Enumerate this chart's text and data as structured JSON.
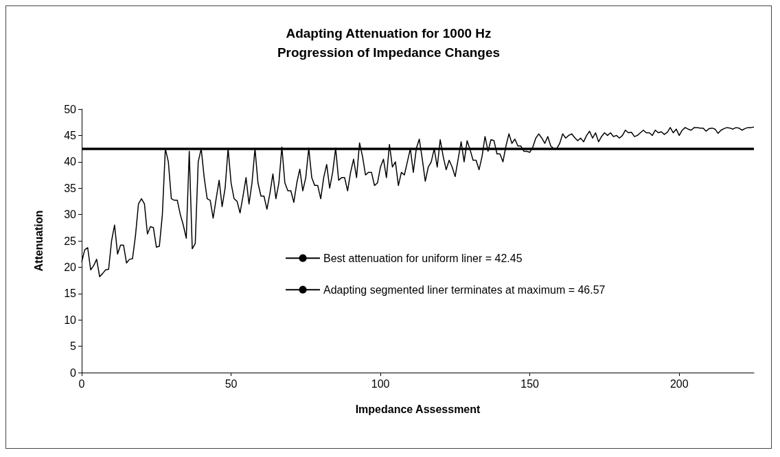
{
  "chart_data": {
    "type": "line",
    "title": "Adapting Attenuation for 1000 Hz\nProgression of Impedance Changes",
    "xlabel": "Impedance Assessment",
    "ylabel": "Attenuation",
    "xlim": [
      0,
      225
    ],
    "xticks": [
      0,
      50,
      100,
      150,
      200
    ],
    "ylim": [
      0,
      50
    ],
    "yticks": [
      0,
      5,
      10,
      15,
      20,
      25,
      30,
      35,
      40,
      45,
      50
    ],
    "grid": false,
    "legend": "center",
    "marker": "none",
    "line_style": "solid",
    "series": [
      {
        "name": "Best attenuation for uniform liner = 42.45",
        "color": "#000000",
        "x": [
          0,
          225
        ],
        "values": [
          42.45,
          42.45
        ]
      },
      {
        "name": "Adapting segmented liner terminates at maximum = 46.57",
        "color": "#000000",
        "x": [
          0,
          1,
          2,
          3,
          4,
          5,
          6,
          7,
          8,
          9,
          10,
          11,
          12,
          13,
          14,
          15,
          16,
          17,
          18,
          19,
          20,
          21,
          22,
          23,
          24,
          25,
          26,
          27,
          28,
          29,
          30,
          31,
          32,
          33,
          34,
          35,
          36,
          37,
          38,
          39,
          40,
          41,
          42,
          43,
          44,
          45,
          46,
          47,
          48,
          49,
          50,
          51,
          52,
          53,
          54,
          55,
          56,
          57,
          58,
          59,
          60,
          61,
          62,
          63,
          64,
          65,
          66,
          67,
          68,
          69,
          70,
          71,
          72,
          73,
          74,
          75,
          76,
          77,
          78,
          79,
          80,
          81,
          82,
          83,
          84,
          85,
          86,
          87,
          88,
          89,
          90,
          91,
          92,
          93,
          94,
          95,
          96,
          97,
          98,
          99,
          100,
          101,
          102,
          103,
          104,
          105,
          106,
          107,
          108,
          109,
          110,
          111,
          112,
          113,
          114,
          115,
          116,
          117,
          118,
          119,
          120,
          121,
          122,
          123,
          124,
          125,
          126,
          127,
          128,
          129,
          130,
          131,
          132,
          133,
          134,
          135,
          136,
          137,
          138,
          139,
          140,
          141,
          142,
          143,
          144,
          145,
          146,
          147,
          148,
          149,
          150,
          151,
          152,
          153,
          154,
          155,
          156,
          157,
          158,
          159,
          160,
          161,
          162,
          163,
          164,
          165,
          166,
          167,
          168,
          169,
          170,
          171,
          172,
          173,
          174,
          175,
          176,
          177,
          178,
          179,
          180,
          181,
          182,
          183,
          184,
          185,
          186,
          187,
          188,
          189,
          190,
          191,
          192,
          193,
          194,
          195,
          196,
          197,
          198,
          199,
          200,
          201,
          202,
          203,
          204,
          205,
          206,
          207,
          208,
          209,
          210,
          211,
          212,
          213,
          214,
          215,
          216,
          217,
          218,
          219,
          220,
          221,
          222,
          223,
          224,
          225
        ],
        "values": [
          21,
          23.3,
          23.7,
          19.5,
          20.3,
          21.5,
          18.2,
          18.8,
          19.5,
          19.6,
          25,
          28,
          22.5,
          24.2,
          24.2,
          20.8,
          21.5,
          21.6,
          26,
          32,
          33,
          32,
          26.3,
          27.7,
          27.5,
          23.8,
          24,
          30,
          42.5,
          40,
          33,
          32.7,
          32.7,
          30,
          28,
          25.5,
          42,
          23.5,
          24.5,
          40,
          42.5,
          37,
          33,
          32.7,
          29.3,
          33,
          36.5,
          31.5,
          35,
          42.5,
          36,
          33,
          32.5,
          30.3,
          33.5,
          37,
          32,
          36,
          42.5,
          36,
          33.5,
          33.5,
          31,
          34,
          37.7,
          33,
          36,
          42.8,
          36,
          34.5,
          34.5,
          32.3,
          36,
          38.6,
          34.5,
          37,
          42.6,
          37,
          35.5,
          35.5,
          33,
          37,
          39.5,
          35,
          38,
          42.6,
          36.5,
          37,
          37,
          34.5,
          38,
          40.5,
          37,
          43.6,
          41,
          37.5,
          38,
          38,
          35.5,
          36,
          39,
          40.5,
          37,
          43.3,
          39,
          40,
          35.5,
          38,
          37.5,
          40,
          42.5,
          38,
          42.5,
          44.3,
          40.5,
          36.3,
          39,
          40,
          42.5,
          39,
          44.2,
          41,
          38.5,
          40.3,
          39,
          37.2,
          40.5,
          43.8,
          40,
          44,
          42.3,
          40.3,
          40.3,
          38.5,
          41,
          44.8,
          42,
          44.2,
          44,
          41.5,
          41.5,
          40,
          43,
          45.3,
          43.5,
          44.3,
          43,
          43,
          42,
          42,
          41.8,
          42.8,
          44.5,
          45.3,
          44.5,
          43.5,
          44.8,
          43,
          42.5,
          42.5,
          43.5,
          45.3,
          44.5,
          45,
          45.3,
          44.6,
          44,
          44.5,
          43.8,
          45,
          45.8,
          44.5,
          45.5,
          43.8,
          44.8,
          45.5,
          45,
          45.5,
          44.8,
          45,
          44.5,
          45,
          46,
          45.5,
          45.6,
          44.8,
          45,
          45.5,
          46,
          45.5,
          45.5,
          45,
          46,
          45.5,
          45.7,
          45.2,
          45.6,
          46.5,
          45.5,
          46.2,
          45,
          46,
          46.5,
          46.2,
          46,
          46.5,
          46.5,
          46.4,
          46.4,
          45.8,
          46.3,
          46.4,
          46.2,
          45.4,
          46,
          46.3,
          46.5,
          46.4,
          46.2,
          46.5,
          46.4,
          46,
          46.3,
          46.5,
          46.5,
          46.57
        ]
      }
    ]
  }
}
